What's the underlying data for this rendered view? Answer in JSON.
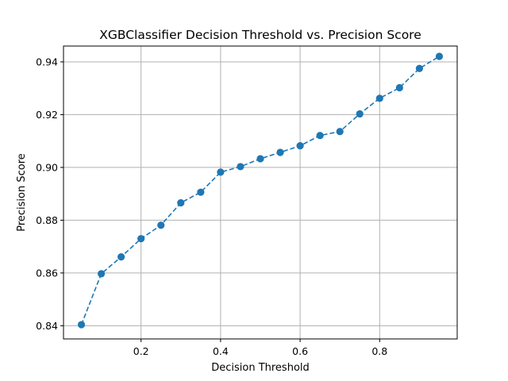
{
  "chart_data": {
    "type": "line",
    "title": "XGBClassifier Decision Threshold vs. Precision Score",
    "xlabel": "Decision Threshold",
    "ylabel": "Precision Score",
    "xlim": [
      0.005,
      0.995
    ],
    "ylim": [
      0.835,
      0.946
    ],
    "xticks": [
      0.2,
      0.4,
      0.6,
      0.8
    ],
    "xtick_labels": [
      "0.2",
      "0.4",
      "0.6",
      "0.8"
    ],
    "yticks": [
      0.84,
      0.86,
      0.88,
      0.9,
      0.92,
      0.94
    ],
    "ytick_labels": [
      "0.84",
      "0.86",
      "0.88",
      "0.90",
      "0.92",
      "0.94"
    ],
    "grid": true,
    "series": [
      {
        "color": "#1f77b4",
        "line_style": "dashed",
        "marker": "circle",
        "x": [
          0.05,
          0.1,
          0.15,
          0.2,
          0.25,
          0.3,
          0.35,
          0.4,
          0.45,
          0.5,
          0.55,
          0.6,
          0.65,
          0.7,
          0.75,
          0.8,
          0.85,
          0.9,
          0.95
        ],
        "y": [
          0.8404,
          0.8597,
          0.8661,
          0.873,
          0.8781,
          0.8866,
          0.8906,
          0.8982,
          0.9003,
          0.9033,
          0.9057,
          0.9082,
          0.9121,
          0.9136,
          0.9203,
          0.9262,
          0.9302,
          0.9375,
          0.9421
        ]
      }
    ]
  }
}
